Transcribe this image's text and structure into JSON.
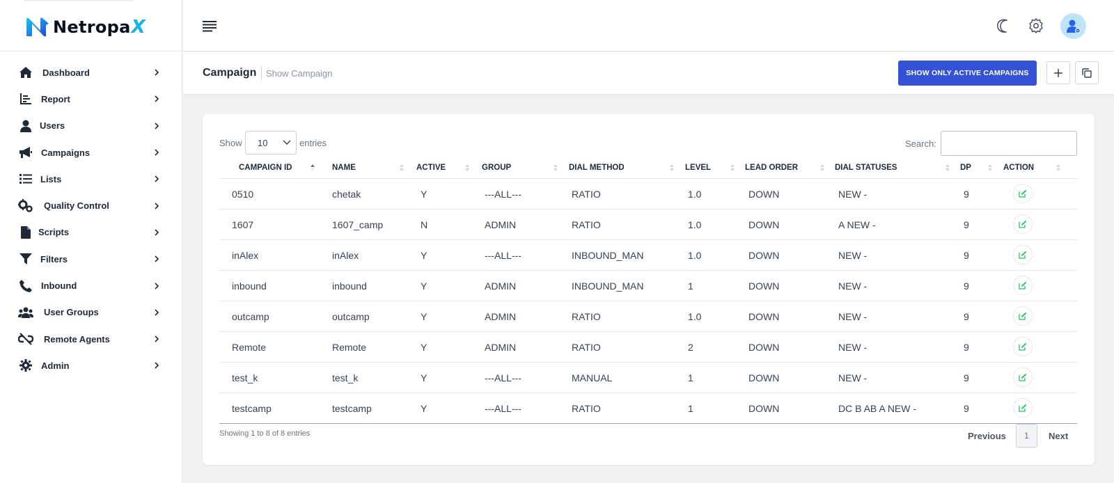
{
  "brand": {
    "name": "Netropa",
    "suffix": "X"
  },
  "sidebar": {
    "items": [
      {
        "label": "Dashboard",
        "icon": "home-icon"
      },
      {
        "label": "Report",
        "icon": "chart-icon"
      },
      {
        "label": "Users",
        "icon": "user-icon"
      },
      {
        "label": "Campaigns",
        "icon": "megaphone-icon"
      },
      {
        "label": "Lists",
        "icon": "list-icon"
      },
      {
        "label": "Quality Control",
        "icon": "gears-icon"
      },
      {
        "label": "Scripts",
        "icon": "file-icon"
      },
      {
        "label": "Filters",
        "icon": "filter-icon"
      },
      {
        "label": "Inbound",
        "icon": "phone-icon"
      },
      {
        "label": "User Groups",
        "icon": "users-icon"
      },
      {
        "label": "Remote Agents",
        "icon": "unlink-icon"
      },
      {
        "label": "Admin",
        "icon": "cog-icon"
      }
    ]
  },
  "header": {
    "title": "Campaign",
    "breadcrumb": "Show Campaign",
    "active_button": "SHOW ONLY ACTIVE CAMPAIGNS"
  },
  "table_controls": {
    "show_label": "Show",
    "page_size": "10",
    "entries_label": "entries",
    "search_label": "Search:",
    "search_value": ""
  },
  "table": {
    "columns": [
      "CAMPAIGN ID",
      "NAME",
      "ACTIVE",
      "GROUP",
      "DIAL METHOD",
      "LEVEL",
      "LEAD ORDER",
      "DIAL STATUSES",
      "DP",
      "ACTION"
    ],
    "rows": [
      [
        "0510",
        "chetak",
        "Y",
        "---ALL---",
        "RATIO",
        "1.0",
        "DOWN",
        "NEW -",
        "9"
      ],
      [
        "1607",
        "1607_camp",
        "N",
        "ADMIN",
        "RATIO",
        "1.0",
        "DOWN",
        "A NEW -",
        "9"
      ],
      [
        "inAlex",
        "inAlex",
        "Y",
        "---ALL---",
        "INBOUND_MAN",
        "1.0",
        "DOWN",
        "NEW -",
        "9"
      ],
      [
        "inbound",
        "inbound",
        "Y",
        "ADMIN",
        "INBOUND_MAN",
        "1",
        "DOWN",
        "NEW -",
        "9"
      ],
      [
        "outcamp",
        "outcamp",
        "Y",
        "ADMIN",
        "RATIO",
        "1.0",
        "DOWN",
        "NEW -",
        "9"
      ],
      [
        "Remote",
        "Remote",
        "Y",
        "ADMIN",
        "RATIO",
        "2",
        "DOWN",
        "NEW -",
        "9"
      ],
      [
        "test_k",
        "test_k",
        "Y",
        "---ALL---",
        "MANUAL",
        "1",
        "DOWN",
        "NEW -",
        "9"
      ],
      [
        "testcamp",
        "testcamp",
        "Y",
        "---ALL---",
        "RATIO",
        "1",
        "DOWN",
        "DC B AB A NEW -",
        "9"
      ]
    ]
  },
  "footer": {
    "info": "Showing 1 to 8 of 8 entries",
    "previous": "Previous",
    "page": "1",
    "next": "Next"
  },
  "colors": {
    "primary": "#3352d6",
    "brand_cyan": "#13b5ea",
    "edit_green": "#22c55e"
  }
}
